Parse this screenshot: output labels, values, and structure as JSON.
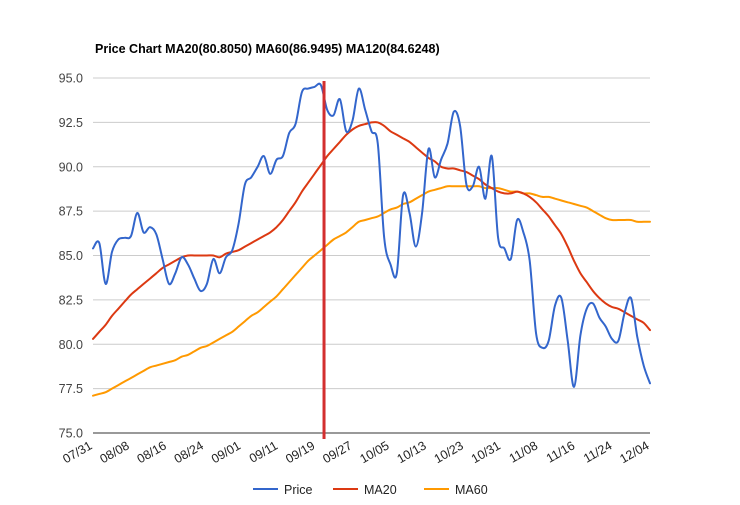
{
  "chart_data": {
    "type": "line",
    "title": "Price Chart MA20(80.8050) MA60(86.9495) MA120(84.6248)",
    "ylim": [
      75.0,
      95.0
    ],
    "yticks": [
      "75.0",
      "77.5",
      "80.0",
      "82.5",
      "85.0",
      "87.5",
      "90.0",
      "92.5",
      "95.0"
    ],
    "xticks": [
      "07/31",
      "08/08",
      "08/16",
      "08/24",
      "09/01",
      "09/11",
      "09/19",
      "09/27",
      "10/05",
      "10/13",
      "10/23",
      "10/31",
      "11/08",
      "11/16",
      "11/24",
      "12/04"
    ],
    "marker_index": 36.5,
    "marker_color": "#d32f2f",
    "grid": true,
    "legend_position": "bottom",
    "series": [
      {
        "name": "Price",
        "color": "#3366cc",
        "values": [
          85.4,
          85.7,
          83.4,
          85.2,
          85.9,
          86.0,
          86.1,
          87.4,
          86.3,
          86.6,
          86.2,
          84.8,
          83.4,
          84.0,
          84.9,
          84.5,
          83.7,
          83.0,
          83.4,
          84.8,
          84.0,
          84.9,
          85.3,
          86.8,
          89.0,
          89.4,
          90.0,
          90.6,
          89.6,
          90.4,
          90.6,
          91.9,
          92.4,
          94.2,
          94.4,
          94.5,
          94.6,
          93.2,
          92.9,
          93.8,
          92.0,
          92.6,
          94.4,
          93.2,
          92.0,
          91.3,
          86.0,
          84.5,
          84.0,
          88.4,
          87.4,
          85.5,
          87.4,
          91.0,
          89.4,
          90.4,
          91.3,
          93.1,
          92.3,
          89.0,
          88.9,
          90.0,
          88.2,
          90.6,
          86.0,
          85.4,
          84.8,
          87.0,
          86.3,
          84.7,
          80.6,
          79.8,
          80.2,
          82.2,
          82.6,
          80.2,
          77.6,
          80.5,
          82.0,
          82.3,
          81.5,
          81.0,
          80.3,
          80.2,
          81.8,
          82.6,
          80.4,
          78.8,
          77.8
        ]
      },
      {
        "name": "MA20",
        "color": "#dc3912",
        "values": [
          80.3,
          80.7,
          81.1,
          81.6,
          82.0,
          82.4,
          82.8,
          83.1,
          83.4,
          83.7,
          84.0,
          84.3,
          84.5,
          84.7,
          84.9,
          85.0,
          85.0,
          85.0,
          85.0,
          85.0,
          84.9,
          85.1,
          85.2,
          85.3,
          85.5,
          85.7,
          85.9,
          86.1,
          86.3,
          86.6,
          87.0,
          87.5,
          88.0,
          88.6,
          89.1,
          89.6,
          90.1,
          90.6,
          91.0,
          91.4,
          91.8,
          92.1,
          92.3,
          92.4,
          92.5,
          92.5,
          92.3,
          92.0,
          91.8,
          91.6,
          91.4,
          91.1,
          90.8,
          90.5,
          90.3,
          90.0,
          89.9,
          89.9,
          89.8,
          89.7,
          89.5,
          89.3,
          89.0,
          88.8,
          88.6,
          88.5,
          88.5,
          88.6,
          88.5,
          88.3,
          88.0,
          87.6,
          87.2,
          86.7,
          86.2,
          85.5,
          84.7,
          84.0,
          83.5,
          83.0,
          82.6,
          82.3,
          82.1,
          82.0,
          81.8,
          81.6,
          81.4,
          81.2,
          80.8
        ]
      },
      {
        "name": "MA60",
        "color": "#ff9900",
        "values": [
          77.1,
          77.2,
          77.3,
          77.5,
          77.7,
          77.9,
          78.1,
          78.3,
          78.5,
          78.7,
          78.8,
          78.9,
          79.0,
          79.1,
          79.3,
          79.4,
          79.6,
          79.8,
          79.9,
          80.1,
          80.3,
          80.5,
          80.7,
          81.0,
          81.3,
          81.6,
          81.8,
          82.1,
          82.4,
          82.7,
          83.1,
          83.5,
          83.9,
          84.3,
          84.7,
          85.0,
          85.3,
          85.6,
          85.9,
          86.1,
          86.3,
          86.6,
          86.9,
          87.0,
          87.1,
          87.2,
          87.4,
          87.6,
          87.7,
          87.9,
          88.0,
          88.2,
          88.4,
          88.6,
          88.7,
          88.8,
          88.9,
          88.9,
          88.9,
          88.9,
          88.9,
          88.9,
          88.8,
          88.8,
          88.8,
          88.7,
          88.6,
          88.6,
          88.5,
          88.5,
          88.4,
          88.3,
          88.3,
          88.2,
          88.1,
          88.0,
          87.9,
          87.8,
          87.7,
          87.5,
          87.3,
          87.1,
          87.0,
          87.0,
          87.0,
          87.0,
          86.9,
          86.9,
          86.9
        ]
      }
    ]
  }
}
